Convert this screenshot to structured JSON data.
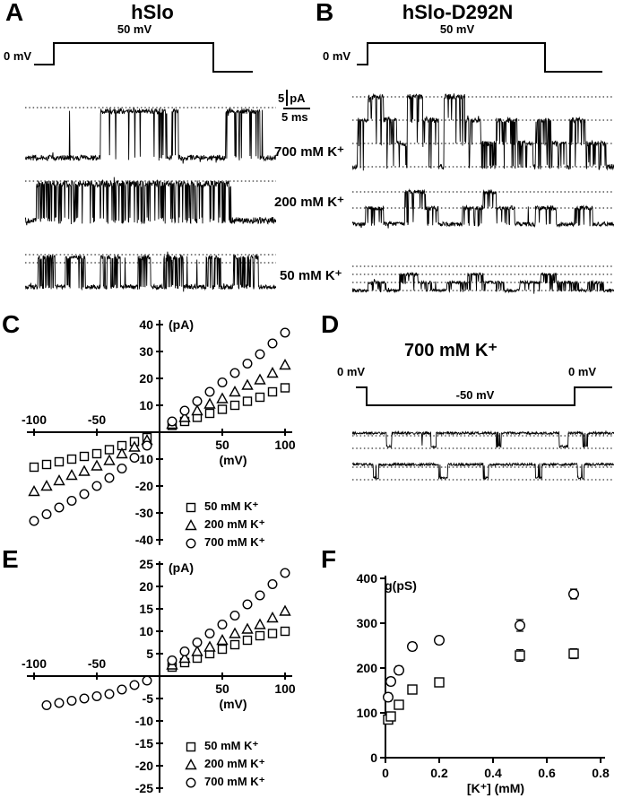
{
  "panelA": {
    "label": "A",
    "title": "hSlo",
    "step_label": "50 mV",
    "hold_label": "0 mV"
  },
  "panelB": {
    "label": "B",
    "title": "hSlo-D292N",
    "step_label": "50 mV",
    "hold_label": "0 mV"
  },
  "panelC": {
    "label": "C"
  },
  "panelD": {
    "label": "D",
    "title": "700 mM K⁺",
    "hold_left": "0 mV",
    "hold_right": "0 mV",
    "step_label": "-50 mV"
  },
  "panelE": {
    "label": "E"
  },
  "panelF": {
    "label": "F"
  },
  "scalebar": {
    "pa_value": "5",
    "pa_unit": "pA",
    "time_label": "5 ms"
  },
  "trace_labels": {
    "k700": "700 mM K⁺",
    "k200": "200 mM K⁺",
    "k50": "50 mM K⁺"
  },
  "chart_data": [
    {
      "id": "C",
      "type": "scatter",
      "xlabel": "(mV)",
      "ylabel": "(pA)",
      "xlim": [
        -100,
        100
      ],
      "ylim": [
        -40,
        40
      ],
      "xticks": [
        -100,
        -50,
        50,
        100
      ],
      "yticks": [
        40,
        30,
        20,
        10,
        -10,
        -20,
        -30,
        -40
      ],
      "legend": [
        {
          "marker": "square",
          "label": "50 mM K⁺"
        },
        {
          "marker": "triangle",
          "label": "200 mM K⁺"
        },
        {
          "marker": "circle",
          "label": "700 mM K⁺"
        }
      ],
      "series": [
        {
          "marker": "square",
          "label": "50 mM K⁺",
          "points": [
            [
              -100,
              -13
            ],
            [
              -90,
              -12
            ],
            [
              -80,
              -11
            ],
            [
              -70,
              -10
            ],
            [
              -60,
              -9
            ],
            [
              -50,
              -8
            ],
            [
              -40,
              -6.5
            ],
            [
              -30,
              -5
            ],
            [
              -20,
              -3.5
            ],
            [
              -10,
              -2
            ],
            [
              10,
              2.5
            ],
            [
              20,
              4
            ],
            [
              30,
              5.5
            ],
            [
              40,
              7
            ],
            [
              50,
              8.5
            ],
            [
              60,
              10
            ],
            [
              70,
              11.5
            ],
            [
              80,
              13
            ],
            [
              90,
              15
            ],
            [
              100,
              16.5
            ]
          ]
        },
        {
          "marker": "triangle",
          "label": "200 mM K⁺",
          "points": [
            [
              -100,
              -22
            ],
            [
              -90,
              -20
            ],
            [
              -80,
              -18
            ],
            [
              -70,
              -16
            ],
            [
              -60,
              -14.5
            ],
            [
              -50,
              -12.5
            ],
            [
              -40,
              -10.5
            ],
            [
              -30,
              -8
            ],
            [
              -20,
              -5.5
            ],
            [
              -10,
              -3
            ],
            [
              10,
              3
            ],
            [
              20,
              5.5
            ],
            [
              30,
              8
            ],
            [
              40,
              10.5
            ],
            [
              50,
              12.5
            ],
            [
              60,
              15
            ],
            [
              70,
              17.5
            ],
            [
              80,
              19.5
            ],
            [
              90,
              22
            ],
            [
              100,
              25
            ]
          ]
        },
        {
          "marker": "circle",
          "label": "700 mM K⁺",
          "points": [
            [
              -100,
              -33
            ],
            [
              -90,
              -30.5
            ],
            [
              -80,
              -28
            ],
            [
              -70,
              -25.5
            ],
            [
              -60,
              -23
            ],
            [
              -50,
              -20
            ],
            [
              -40,
              -17
            ],
            [
              -30,
              -13.5
            ],
            [
              -20,
              -9.5
            ],
            [
              -10,
              -5
            ],
            [
              10,
              4
            ],
            [
              20,
              8
            ],
            [
              30,
              11.5
            ],
            [
              40,
              15
            ],
            [
              50,
              18.5
            ],
            [
              60,
              22
            ],
            [
              70,
              25.5
            ],
            [
              80,
              29
            ],
            [
              90,
              33
            ],
            [
              100,
              37
            ]
          ]
        }
      ]
    },
    {
      "id": "E",
      "type": "scatter",
      "xlabel": "(mV)",
      "ylabel": "(pA)",
      "xlim": [
        -100,
        100
      ],
      "ylim": [
        -25,
        25
      ],
      "xticks": [
        -100,
        -50,
        50,
        100
      ],
      "yticks": [
        25,
        20,
        15,
        10,
        5,
        -5,
        -10,
        -15,
        -20,
        -25
      ],
      "legend": [
        {
          "marker": "square",
          "label": "50 mM K⁺"
        },
        {
          "marker": "triangle",
          "label": "200 mM K⁺"
        },
        {
          "marker": "circle",
          "label": "700 mM K⁺"
        }
      ],
      "series": [
        {
          "marker": "square",
          "label": "50 mM K⁺",
          "points": [
            [
              10,
              2
            ],
            [
              20,
              3
            ],
            [
              30,
              4
            ],
            [
              40,
              5
            ],
            [
              50,
              6
            ],
            [
              60,
              7
            ],
            [
              70,
              8
            ],
            [
              80,
              9
            ],
            [
              90,
              9.5
            ],
            [
              100,
              10
            ]
          ]
        },
        {
          "marker": "triangle",
          "label": "200 mM K⁺",
          "points": [
            [
              10,
              2.5
            ],
            [
              20,
              4
            ],
            [
              30,
              5.5
            ],
            [
              40,
              6.5
            ],
            [
              50,
              8
            ],
            [
              60,
              9.5
            ],
            [
              70,
              10.5
            ],
            [
              80,
              11.5
            ],
            [
              90,
              13
            ],
            [
              100,
              14.5
            ]
          ]
        },
        {
          "marker": "circle",
          "label": "700 mM K⁺",
          "points": [
            [
              -90,
              -6.5
            ],
            [
              -80,
              -6
            ],
            [
              -70,
              -5.5
            ],
            [
              -60,
              -5
            ],
            [
              -50,
              -4.5
            ],
            [
              -40,
              -4
            ],
            [
              -30,
              -3
            ],
            [
              -20,
              -2
            ],
            [
              -10,
              -1
            ],
            [
              10,
              3.5
            ],
            [
              20,
              5.5
            ],
            [
              30,
              7.5
            ],
            [
              40,
              9.5
            ],
            [
              50,
              11.5
            ],
            [
              60,
              13.5
            ],
            [
              70,
              16
            ],
            [
              80,
              18
            ],
            [
              90,
              20.5
            ],
            [
              100,
              23
            ]
          ]
        }
      ]
    },
    {
      "id": "F",
      "type": "scatter",
      "xlabel": "[K⁺] (mM)",
      "ylabel": "g(pS)",
      "xlim": [
        0,
        0.8
      ],
      "ylim": [
        0,
        400
      ],
      "xticks": [
        0,
        0.2,
        0.4,
        0.6,
        0.8
      ],
      "yticks": [
        0,
        100,
        200,
        300,
        400
      ],
      "series": [
        {
          "marker": "circle",
          "points": [
            [
              0.01,
              135
            ],
            [
              0.02,
              170
            ],
            [
              0.05,
              195
            ],
            [
              0.1,
              248
            ],
            [
              0.2,
              262
            ],
            [
              0.5,
              295
            ],
            [
              0.7,
              365
            ]
          ],
          "yerr": [
            9,
            9,
            9,
            9,
            9,
            13,
            11
          ]
        },
        {
          "marker": "square",
          "points": [
            [
              0.01,
              85
            ],
            [
              0.02,
              92
            ],
            [
              0.05,
              118
            ],
            [
              0.1,
              152
            ],
            [
              0.2,
              168
            ],
            [
              0.5,
              228
            ],
            [
              0.7,
              232
            ]
          ],
          "yerr": [
            7,
            7,
            7,
            9,
            9,
            13,
            11
          ]
        }
      ]
    }
  ]
}
